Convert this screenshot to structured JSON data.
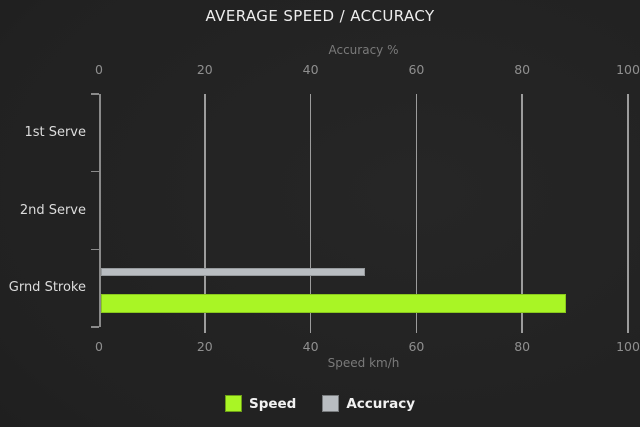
{
  "title": "AVERAGE SPEED / ACCURACY",
  "chart_data": {
    "type": "bar",
    "orientation": "horizontal",
    "categories": [
      "1st Serve",
      "2nd Serve",
      "Grnd Stroke"
    ],
    "series": [
      {
        "name": "Speed",
        "color": "#a9f525",
        "values": [
          0,
          0,
          88
        ]
      },
      {
        "name": "Accuracy",
        "color": "#b9bdc1",
        "values": [
          0,
          0,
          50
        ]
      }
    ],
    "top_axis": {
      "label": "Accuracy %",
      "ticks": [
        0,
        20,
        40,
        60,
        80,
        100
      ],
      "range": [
        0,
        100
      ]
    },
    "bottom_axis": {
      "label": "Speed km/h",
      "ticks": [
        0,
        20,
        40,
        60,
        80,
        100
      ],
      "range": [
        0,
        100
      ]
    },
    "grid": true,
    "legend_position": "bottom"
  },
  "theme": {
    "grid_color": "#9c9c9c",
    "axis_color": "#8a8a8a",
    "tick_label_color": "#8f8f8f",
    "axis_label_color": "#7a7a7a",
    "category_label_color": "#dcdcdc",
    "title_color": "#ededed",
    "legend_text_color": "#f2f2f2"
  }
}
